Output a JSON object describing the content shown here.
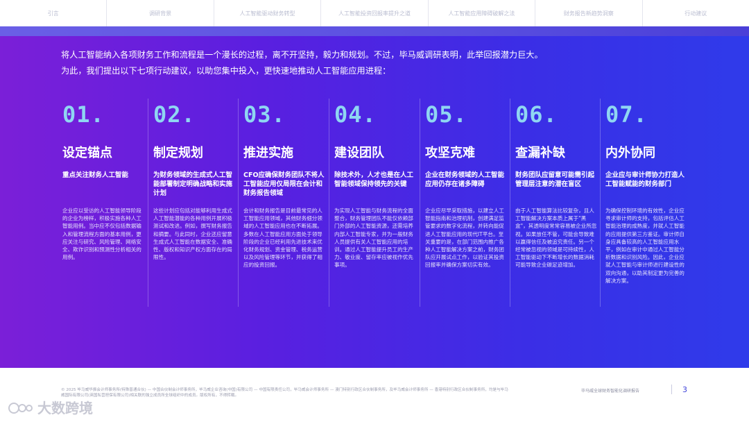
{
  "nav": {
    "tabs": [
      "引言",
      "调研背景",
      "人工智能驱动财务转型",
      "人工智能投资回报率提升之道",
      "人工智能应用障碍破解之法",
      "财务报告新趋势洞察",
      "行动建议"
    ]
  },
  "intro": {
    "line1": "将人工智能纳入各项财务工作和流程是一个漫长的过程，离不开坚持，毅力和规划。不过，毕马威调研表明，此举回报潜力巨大。",
    "line2": "为此，我们提出以下七项行动建议，以助您集中投入，更快速地推动人工智能应用进程："
  },
  "actions": [
    {
      "num": "01.",
      "title": "设定锚点",
      "subtitle": "重点关注财务人工智能",
      "body": "企业应以受访的人工智能领导阶段的企业为榜样，积极实施各种人工智能用例。当中应不仅包括数据输入和管理流程方面的基本用例，更应关注与研究、风险管理、网络安全、欺诈识别和预测性分析相关的用例。"
    },
    {
      "num": "02.",
      "title": "制定规划",
      "subtitle": "为财务领域的生成式人工智能部署制定明确战略和实施计划",
      "body": "这些计划应包括对能够利用生成式人工智能潜能的各种用例开展积极测试和改进。例如，撰写财务报告和摘要。与此同时，企业还应留意生成式人工智能在数据安全、准确性、版权和知识产权方面存在的局限性。"
    },
    {
      "num": "03.",
      "title": "推进实施",
      "subtitle": "CFO应确保财务团队不将人工智能应用仅局限在会计和财务报告领域",
      "body": "会计和财务报告是目前最常见的人工智能应用领域，其他财务细分领域的人工智能应用也在不断拓展。多数在人工智能应用方面处于领导阶段的企业已经利用先进技术来优化财务规划、资金管理、税务运营以及风险管理等环节，并获得了相应的投资回报。"
    },
    {
      "num": "04.",
      "title": "建设团队",
      "subtitle": "除技术外，人才也是在人工智能领域保持领先的关键",
      "body": "为实现人工智能与财务流程的全面整合，财务管理团队不能仅依赖部门外部的人工智能资源，还需培养内部人工智能专家，并为一般财务人员提供有关人工智能应用的培训。通过人工智能提升员工的生产力、敬业度、留存率应被视作优先事项。"
    },
    {
      "num": "05.",
      "title": "攻坚克难",
      "subtitle": "企业在财务领域的人工智能应用仍存在诸多障碍",
      "body": "企业应尽早采取措施，以建立人工智能指南和治理机制，创建满足监管要求的数字化流程，并转向能促进人工智能应用的现代IT平台。至关重要的是，在部门范围内推广各种人工智能解决方案之前，财务团队应开展试点工作，以验证其投资回报率并确保方案切实有效。"
    },
    {
      "num": "06.",
      "title": "查漏补缺",
      "subtitle": "财务团队应留意可能需引起管理层注意的潜在盲区",
      "body": "由于人工智能算法比较复杂，且人工智能解决方案本质上属于\"黑盒\"，其透明度常常容易被企业所忽视。如果放任不管，可能会导致难以赢得信任及被追究责任。另一个经常被忽视的领域是可持续性，人工智能驱动下不断增长的数据消耗可能导致企业碳足迹增加。"
    },
    {
      "num": "07.",
      "title": "内外协同",
      "subtitle": "企业应与审计师协力打造人工智能赋能的财务部门",
      "body": "为确保控制环境的有效性，企业应寻求审计师的支持，包括评估人工智能治理的成熟度，并就人工智能的应用提供第三方鉴证。审计师自身应具备较高的人工智能应用水平，例如在审计中通过人工智能分析数据和识别风险。因此，企业应就人工智能与审计师进行建设性的双向沟通，以助其制定更为完善的解决方案。"
    }
  ],
  "footer": {
    "copyright": "© 2025 毕马威华振会计师事务所(特殊普通合伙) — 中国合伙制会计师事务所，毕马威企业咨询(中国)有限公司 — 中国有限责任公司，毕马威会计师事务所 — 澳门特别行政区合伙制事务所，及毕马威会计师事务所 — 香港特别行政区合伙制事务所，均是与毕马威国际有限公司(英国私营担保有限公司)相关联的独立成员所全球组织中的成员。版权所有，不得转载。",
    "report_name": "毕马威全球财务智能化调研报告",
    "page_number": "3"
  },
  "watermark": {
    "text": "大数跨境"
  }
}
